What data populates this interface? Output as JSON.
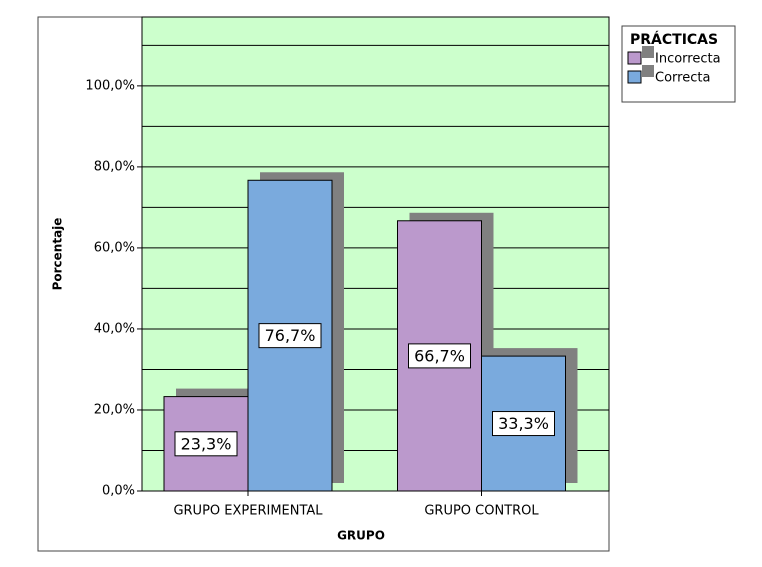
{
  "chart_data": {
    "type": "bar",
    "x_label": "GRUPO",
    "y_label": "Porcentaje",
    "legend_title": "PRÁCTICAS",
    "legend": "top-right-outside",
    "categories": [
      "GRUPO EXPERIMENTAL",
      "GRUPO CONTROL"
    ],
    "series": [
      {
        "name": "Incorrecta",
        "color": "#bb99cc",
        "values": [
          23.3,
          66.7
        ],
        "value_labels": [
          "23,3%",
          "66,7%"
        ]
      },
      {
        "name": "Correcta",
        "color": "#7aaadd",
        "values": [
          76.7,
          33.3
        ],
        "value_labels": [
          "76,7%",
          "33,3%"
        ]
      }
    ],
    "ylim": [
      0,
      117
    ],
    "yticks": [
      {
        "value": 0,
        "label": "0,0%"
      },
      {
        "value": 20,
        "label": "20,0%"
      },
      {
        "value": 40,
        "label": "40,0%"
      },
      {
        "value": 60,
        "label": "60,0%"
      },
      {
        "value": 80,
        "label": "80,0%"
      },
      {
        "value": 100,
        "label": "100,0%"
      }
    ],
    "minor_yticks": [
      10,
      30,
      50,
      70,
      90,
      110
    ],
    "grid": true,
    "background": "#ccffcc",
    "shadow_color": "#808080"
  }
}
